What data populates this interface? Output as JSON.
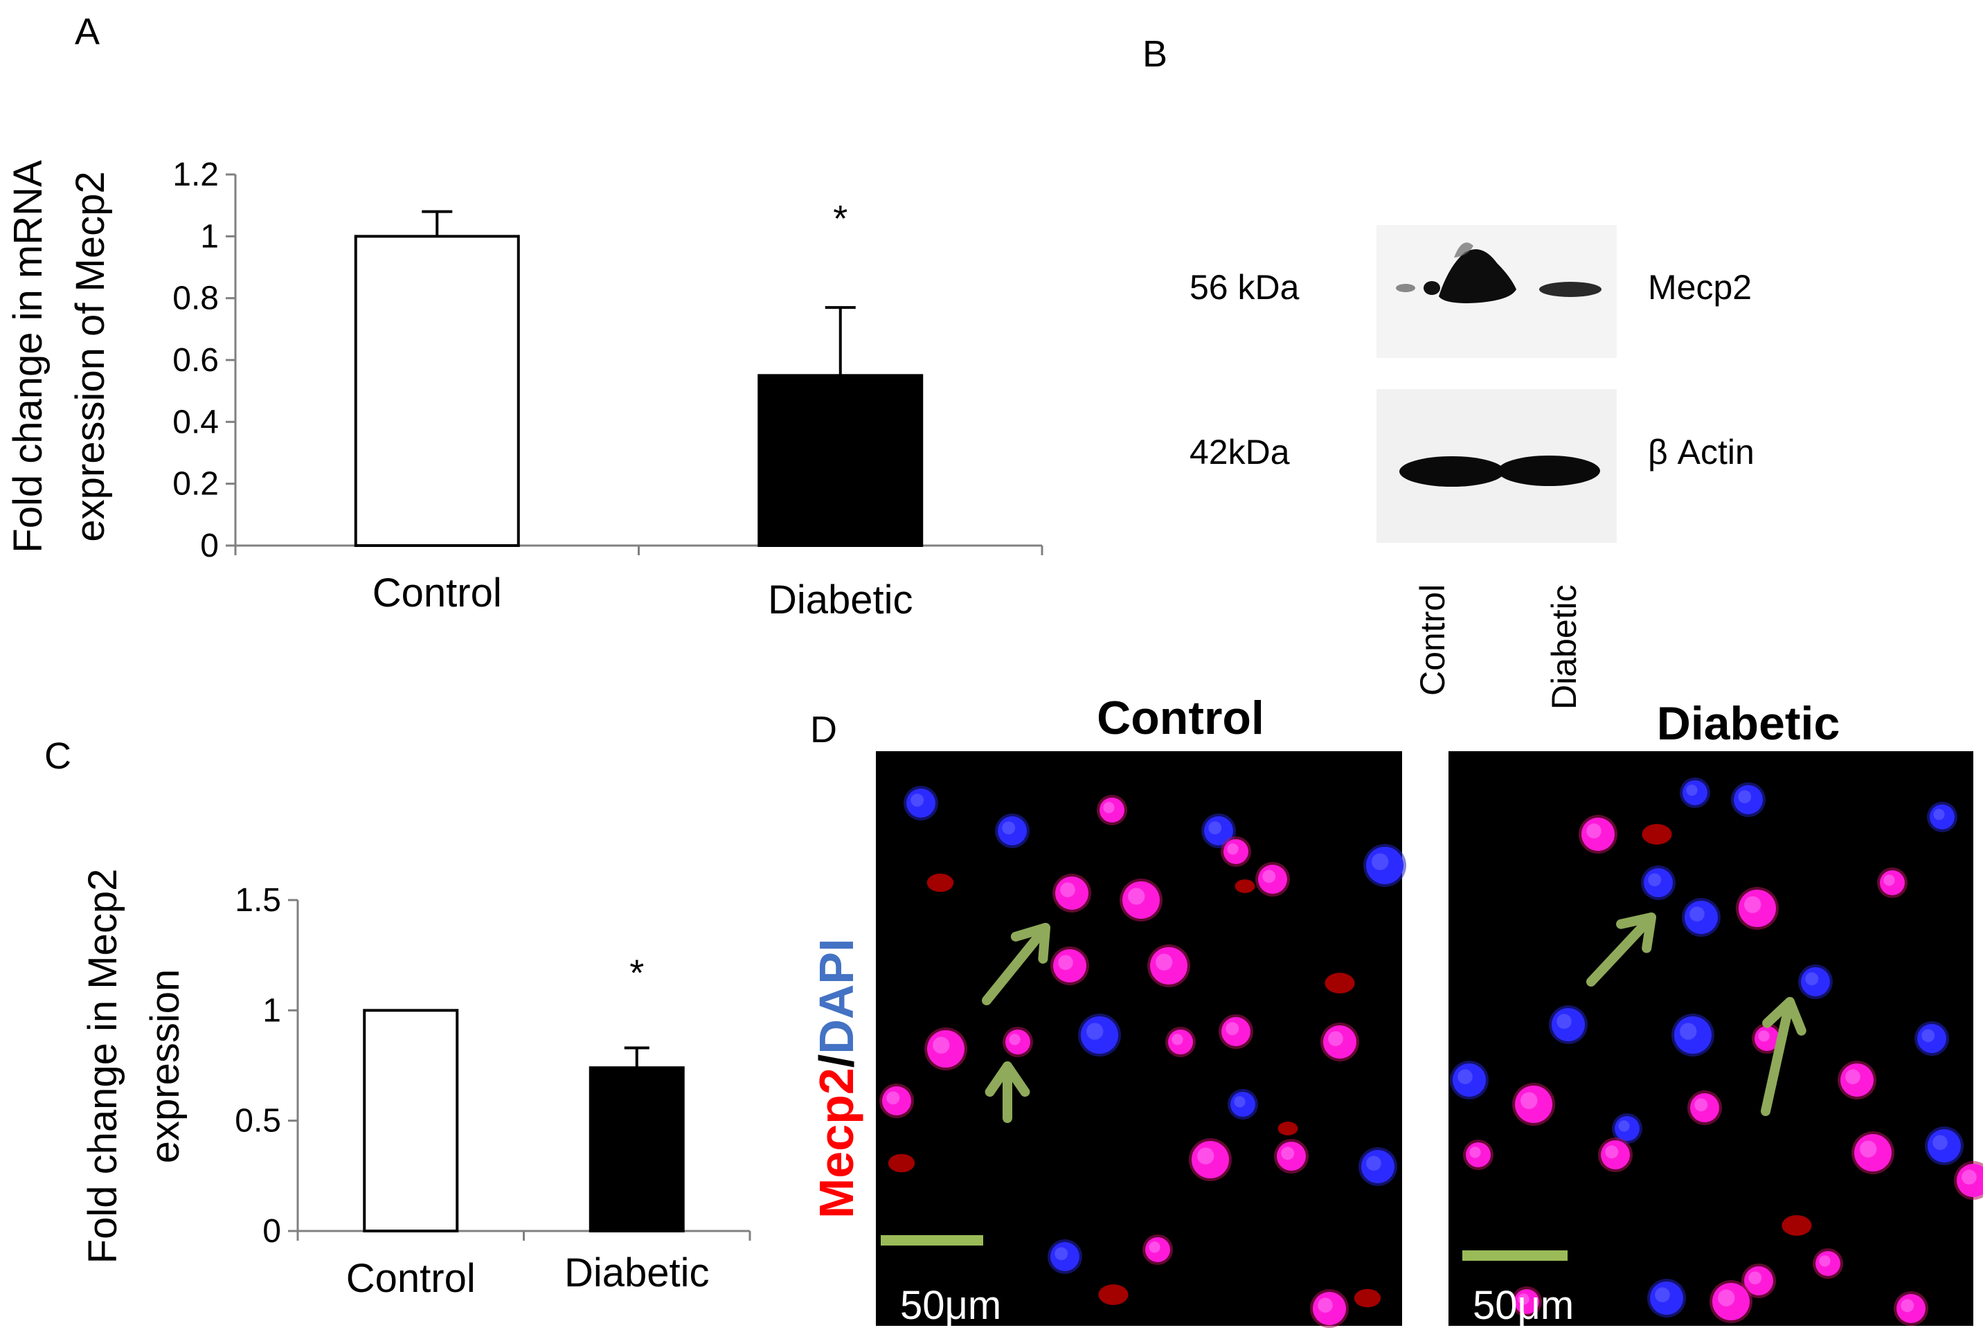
{
  "panels": {
    "A": "A",
    "B": "B",
    "C": "C",
    "D": "D"
  },
  "chart_data": [
    {
      "type": "bar",
      "panel": "A",
      "categories": [
        "Control",
        "Diabetic"
      ],
      "values": [
        1.0,
        0.55
      ],
      "errors": [
        0.08,
        0.22
      ],
      "significance": [
        "",
        "*"
      ],
      "ylabel_line1": "Fold change in mRNA",
      "ylabel_line2": "expression of Mecp2",
      "ylim": [
        0,
        1.2
      ],
      "yticks": [
        "0",
        "0.2",
        "0.4",
        "0.6",
        "0.8",
        "1",
        "1.2"
      ],
      "yticks_values": [
        0,
        0.2,
        0.4,
        0.6,
        0.8,
        1,
        1.2
      ],
      "colors": [
        "#ffffff",
        "#000000"
      ]
    },
    {
      "type": "bar",
      "panel": "C",
      "categories": [
        "Control",
        "Diabetic"
      ],
      "values": [
        1.0,
        0.74
      ],
      "errors": [
        0,
        0.09
      ],
      "significance": [
        "",
        "*"
      ],
      "ylabel_line1": "Fold change in Mecp2",
      "ylabel_line2": "expression",
      "ylim": [
        0,
        1.5
      ],
      "yticks": [
        "0",
        "0.5",
        "1",
        "1.5"
      ],
      "yticks_values": [
        0,
        0.5,
        1,
        1.5
      ],
      "colors": [
        "#ffffff",
        "#000000"
      ]
    }
  ],
  "western_blot": {
    "bands": [
      {
        "size": "56 kDa",
        "protein": "Mecp2"
      },
      {
        "size": "42kDa",
        "protein": "β Actin"
      }
    ],
    "lanes": [
      "Control",
      "Diabetic"
    ]
  },
  "immunofluorescence": {
    "titles": [
      "Control",
      "Diabetic"
    ],
    "stain_red": "Mecp2",
    "stain_sep": "/",
    "stain_blue": "DAPI",
    "scale_bar": "50μm",
    "colors": {
      "red": "#ff0000",
      "blue": "#4472c4",
      "arrow": "#8faa5a",
      "scale": "#9bbb59"
    }
  }
}
